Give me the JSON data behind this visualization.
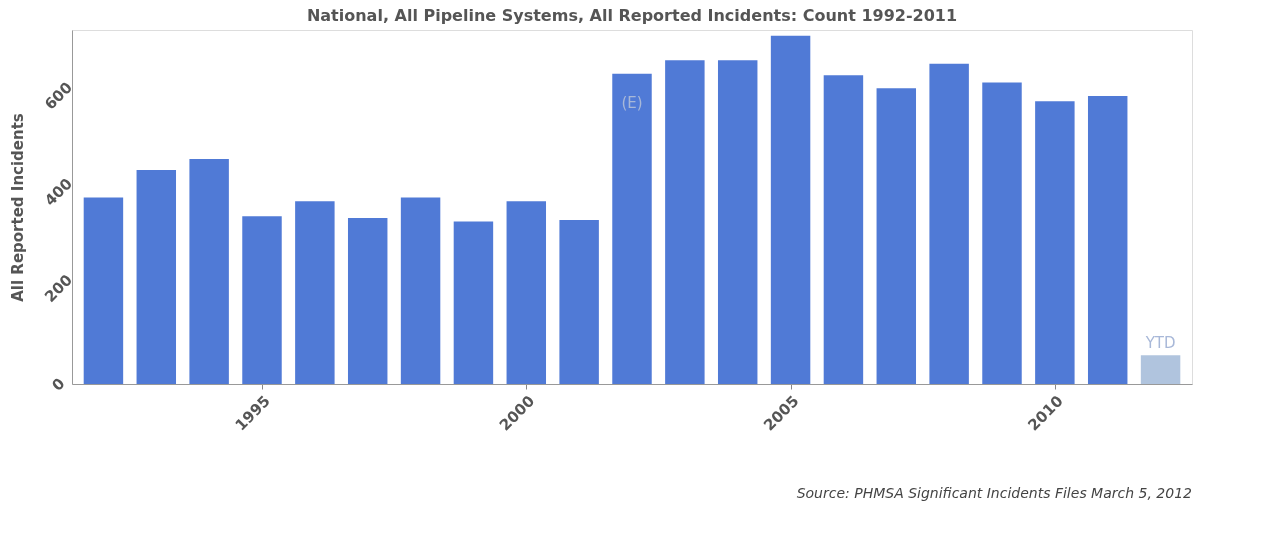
{
  "chart_data": {
    "type": "bar",
    "title": "National, All Pipeline Systems, All Reported Incidents: Count 1992-2011",
    "ylabel": "All Reported Incidents",
    "x": [
      1992,
      1993,
      1994,
      1995,
      1996,
      1997,
      1998,
      1999,
      2000,
      2001,
      2002,
      2003,
      2004,
      2005,
      2006,
      2007,
      2008,
      2009,
      2010,
      2011,
      2012
    ],
    "values": [
      388,
      445,
      468,
      349,
      380,
      345,
      388,
      338,
      380,
      341,
      645,
      673,
      673,
      724,
      642,
      615,
      666,
      627,
      588,
      599,
      60
    ],
    "colors": [
      "#507ad6",
      "#507ad6",
      "#507ad6",
      "#507ad6",
      "#507ad6",
      "#507ad6",
      "#507ad6",
      "#507ad6",
      "#507ad6",
      "#507ad6",
      "#507ad6",
      "#507ad6",
      "#507ad6",
      "#507ad6",
      "#507ad6",
      "#507ad6",
      "#507ad6",
      "#507ad6",
      "#507ad6",
      "#507ad6",
      "#b0c4de"
    ],
    "xlim": [
      1991.5,
      2012.5
    ],
    "xticks": [
      1995,
      2000,
      2005,
      2010
    ],
    "ylim": [
      0,
      736
    ],
    "yticks": [
      0,
      200,
      400,
      600
    ],
    "grid": false,
    "annotations": [
      {
        "text": "(E)",
        "x": 2002,
        "y": 645
      },
      {
        "text": "YTD",
        "x": 2012,
        "y": 60
      },
      "Source: PHMSA Significant Incidents Files March 5, 2012"
    ]
  }
}
